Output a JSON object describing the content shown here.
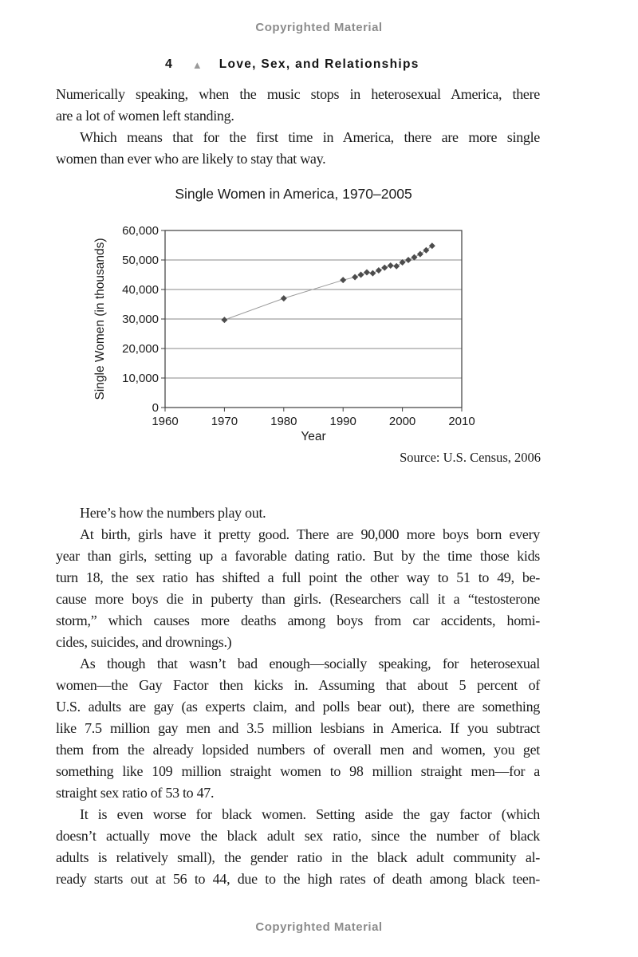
{
  "page": {
    "copyright_top": "Copyrighted Material",
    "copyright_bottom": "Copyrighted Material"
  },
  "header": {
    "page_number": "4",
    "triangle_icon": "▲",
    "title": "Love, Sex, and Relationships"
  },
  "text_block_1": {
    "paragraphs": [
      {
        "indent": false,
        "last_line_justified": false,
        "lines": [
          "Numerically speaking, when the music stops in heterosexual America, there",
          "are a lot of women left standing."
        ]
      },
      {
        "indent": true,
        "last_line_justified": false,
        "lines": [
          "Which means that for the first time in America, there are more single",
          "women than ever who are likely to stay that way."
        ]
      }
    ]
  },
  "chart_data": {
    "type": "line",
    "title": "Single Women in America, 1970–2005",
    "xlabel": "Year",
    "ylabel": "Single Women (in thousands)",
    "source": "Source: U.S. Census, 2006",
    "xlim": [
      1960,
      2010
    ],
    "ylim": [
      0,
      60000
    ],
    "xticks": [
      1960,
      1970,
      1980,
      1990,
      2000,
      2010
    ],
    "yticks": [
      0,
      10000,
      20000,
      30000,
      40000,
      50000,
      60000
    ],
    "grid": "horizontal",
    "legend": "none",
    "marker": "diamond",
    "x": [
      1970,
      1980,
      1990,
      1992,
      1993,
      1994,
      1995,
      1996,
      1997,
      1998,
      1999,
      2000,
      2001,
      2002,
      2003,
      2004,
      2005
    ],
    "y": [
      29700,
      37000,
      43200,
      44200,
      45000,
      45800,
      45500,
      46500,
      47400,
      48100,
      47900,
      49200,
      50000,
      50900,
      52000,
      53300,
      54800
    ],
    "colors": {
      "frame": "#3d3d3d",
      "grid": "#8a8a8a",
      "line": "#9a9a9a",
      "marker": "#4c4c4c"
    }
  },
  "text_block_2": {
    "paragraphs": [
      {
        "indent": true,
        "last_line_justified": false,
        "lines": [
          "Here’s how the numbers play out."
        ]
      },
      {
        "indent": true,
        "last_line_justified": false,
        "lines": [
          "At birth, girls have it pretty good. There are 90,000 more boys born every",
          "year than girls, setting up a favorable dating ratio. But by the time those kids",
          "turn 18, the sex ratio has shifted a full point the other way to 51 to 49, be-",
          "cause more boys die in puberty than girls. (Researchers call it a “testosterone",
          "storm,” which causes more deaths among boys from car accidents, homi-",
          "cides, suicides, and drownings.)"
        ]
      },
      {
        "indent": true,
        "last_line_justified": false,
        "lines": [
          "As though that wasn’t bad enough—socially speaking, for heterosexual",
          "women—the Gay Factor then kicks in. Assuming that about 5 percent of",
          "U.S. adults are gay (as experts claim, and polls bear out), there are something",
          "like 7.5 million gay men and 3.5 million lesbians in America. If you subtract",
          "them from the already lopsided numbers of overall men and women, you get",
          "something like 109 million straight women to 98 million straight men—for a",
          "straight sex ratio of 53 to 47."
        ]
      },
      {
        "indent": true,
        "last_line_justified": true,
        "lines": [
          "It is even worse for black women. Setting aside the gay factor (which",
          "doesn’t actually move the black adult sex ratio, since the number of black",
          "adults is relatively small), the gender ratio in the black adult community al-",
          "ready starts out at 56 to 44, due to the high rates of death among black teen-"
        ]
      }
    ]
  }
}
